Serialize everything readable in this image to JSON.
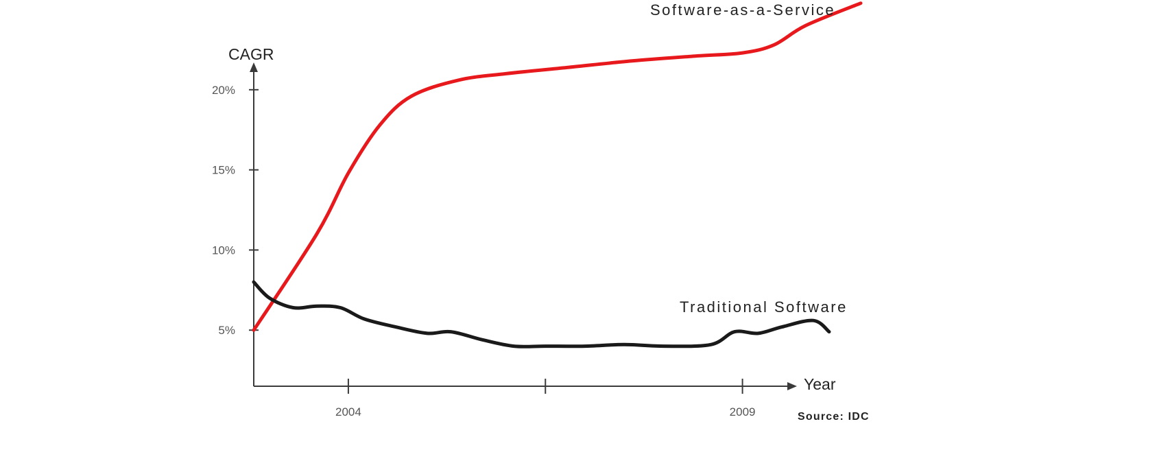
{
  "chart_data": {
    "type": "line",
    "xlabel": "Year",
    "ylabel": "CAGR",
    "source": "Source: IDC",
    "x_ticks": [
      {
        "value": 2004,
        "label": "2004"
      },
      {
        "value": 2006.5,
        "label": ""
      },
      {
        "value": 2009,
        "label": "2009"
      }
    ],
    "y_ticks": [
      {
        "value": 5,
        "label": "5%"
      },
      {
        "value": 10,
        "label": "10%"
      },
      {
        "value": 15,
        "label": "15%"
      },
      {
        "value": 20,
        "label": "20%"
      }
    ],
    "xlim": [
      2002.8,
      2010.5
    ],
    "ylim": [
      1.5,
      25
    ],
    "grid": false,
    "series": [
      {
        "name": "Software-as-a-Service",
        "color": "#e8191c",
        "x": [
          2002.8,
          2003.6,
          2004.0,
          2004.4,
          2004.8,
          2005.4,
          2006.0,
          2006.8,
          2007.6,
          2008.4,
          2009.0,
          2009.4,
          2009.8,
          2010.5
        ],
        "y": [
          5.0,
          11.0,
          14.8,
          17.8,
          19.6,
          20.6,
          21.0,
          21.4,
          21.8,
          22.1,
          22.3,
          22.8,
          24.0,
          25.4
        ]
      },
      {
        "name": "Traditional Software",
        "color": "#1a1a1a",
        "x": [
          2002.8,
          2003.0,
          2003.3,
          2003.6,
          2003.9,
          2004.2,
          2004.6,
          2005.0,
          2005.3,
          2005.7,
          2006.1,
          2006.5,
          2007.0,
          2007.5,
          2008.0,
          2008.6,
          2008.9,
          2009.2,
          2009.5,
          2009.9,
          2010.1
        ],
        "y": [
          8.0,
          7.0,
          6.4,
          6.5,
          6.4,
          5.7,
          5.2,
          4.8,
          4.9,
          4.4,
          4.0,
          4.0,
          4.0,
          4.1,
          4.0,
          4.1,
          4.9,
          4.8,
          5.2,
          5.6,
          4.9
        ]
      }
    ]
  }
}
